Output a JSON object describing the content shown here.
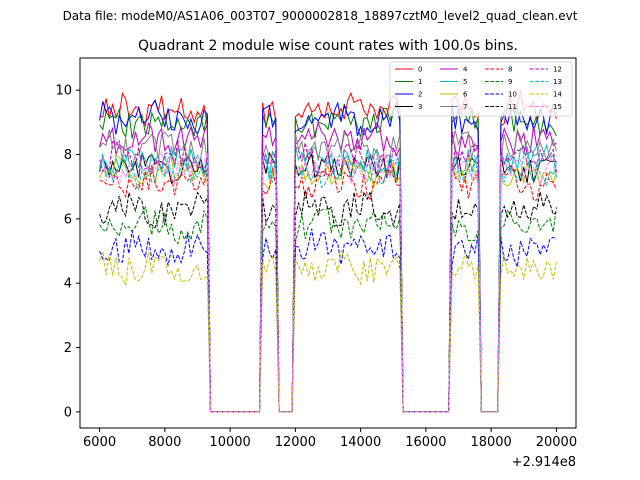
{
  "chart_data": {
    "type": "line",
    "suptitle": "Data file: modeM0/AS1A06_003T07_9000002818_18897cztM0_level2_quad_clean.evt",
    "title": "Quadrant 2 module wise count rates with 100.0s bins.",
    "xlabel": "",
    "ylabel": "",
    "x_offset_label": "+2.914e8",
    "xlim": [
      5400,
      20600
    ],
    "ylim": [
      -0.5,
      11.0
    ],
    "xticks": [
      6000,
      8000,
      10000,
      12000,
      14000,
      16000,
      18000,
      20000
    ],
    "yticks": [
      0,
      2,
      4,
      6,
      8,
      10
    ],
    "legend": {
      "position": "top-right",
      "columns": 4
    },
    "x_range": [
      6000,
      20000
    ],
    "bin_width": 100,
    "on_intervals": [
      [
        6000,
        9300
      ],
      [
        11000,
        11400
      ],
      [
        12000,
        15200
      ],
      [
        16800,
        17600
      ],
      [
        18300,
        20000
      ]
    ],
    "series": [
      {
        "name": "0",
        "color": "#ff0000",
        "dash": "solid",
        "base": 9.4
      },
      {
        "name": "1",
        "color": "#008000",
        "dash": "solid",
        "base": 9.0
      },
      {
        "name": "2",
        "color": "#0000ff",
        "dash": "solid",
        "base": 9.1
      },
      {
        "name": "3",
        "color": "#000000",
        "dash": "solid",
        "base": 7.6
      },
      {
        "name": "4",
        "color": "#bf00bf",
        "dash": "solid",
        "base": 8.5
      },
      {
        "name": "5",
        "color": "#00bfbf",
        "dash": "solid",
        "base": 7.8
      },
      {
        "name": "6",
        "color": "#bfbf00",
        "dash": "solid",
        "base": 7.4
      },
      {
        "name": "7",
        "color": "#808080",
        "dash": "solid",
        "base": 8.2
      },
      {
        "name": "8",
        "color": "#ff0000",
        "dash": "dashed",
        "base": 7.1
      },
      {
        "name": "9",
        "color": "#008000",
        "dash": "dashed",
        "base": 5.8
      },
      {
        "name": "10",
        "color": "#0000ff",
        "dash": "dashed",
        "base": 5.1
      },
      {
        "name": "11",
        "color": "#000000",
        "dash": "dashed",
        "base": 6.3
      },
      {
        "name": "12",
        "color": "#bf00bf",
        "dash": "dashed",
        "base": 7.9
      },
      {
        "name": "13",
        "color": "#00bfbf",
        "dash": "dashed",
        "base": 7.5
      },
      {
        "name": "14",
        "color": "#bfbf00",
        "dash": "dashed",
        "base": 4.5
      },
      {
        "name": "15",
        "color": "#ff80ff",
        "dash": "dashed",
        "base": 7.6
      }
    ]
  }
}
